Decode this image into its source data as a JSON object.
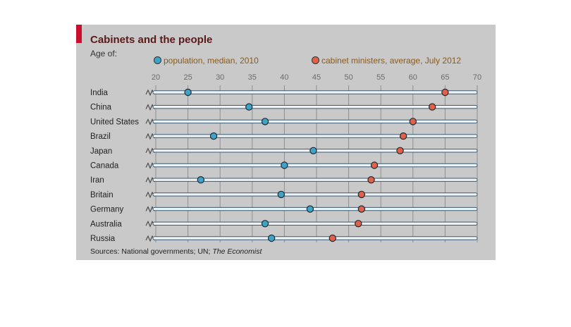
{
  "title": "Cabinets and the people",
  "subtitle": "Age of:",
  "legend": [
    {
      "label": "population, median, 2010",
      "color": "#3fa3c8"
    },
    {
      "label": "cabinet ministers, average, July 2012",
      "color": "#e0604a"
    }
  ],
  "source_prefix": "Sources: National governments; UN; ",
  "source_em": "The Economist",
  "chart_data": {
    "type": "dot-plot",
    "title": "Cabinets and the people",
    "xlim": [
      20,
      70
    ],
    "ticks": [
      20,
      25,
      30,
      35,
      40,
      45,
      50,
      55,
      60,
      65,
      70
    ],
    "categories": [
      "India",
      "China",
      "United States",
      "Brazil",
      "Japan",
      "Canada",
      "Iran",
      "Britain",
      "Germany",
      "Australia",
      "Russia"
    ],
    "series": [
      {
        "name": "population, median, 2010",
        "color": "#3fa3c8",
        "values": [
          25,
          34.5,
          37,
          29,
          44.5,
          40,
          27,
          39.5,
          44,
          37,
          38
        ]
      },
      {
        "name": "cabinet ministers, average, July 2012",
        "color": "#e0604a",
        "values": [
          65,
          63,
          60,
          58.5,
          58,
          54,
          53.5,
          52,
          52,
          51.5,
          47.5
        ]
      }
    ]
  }
}
